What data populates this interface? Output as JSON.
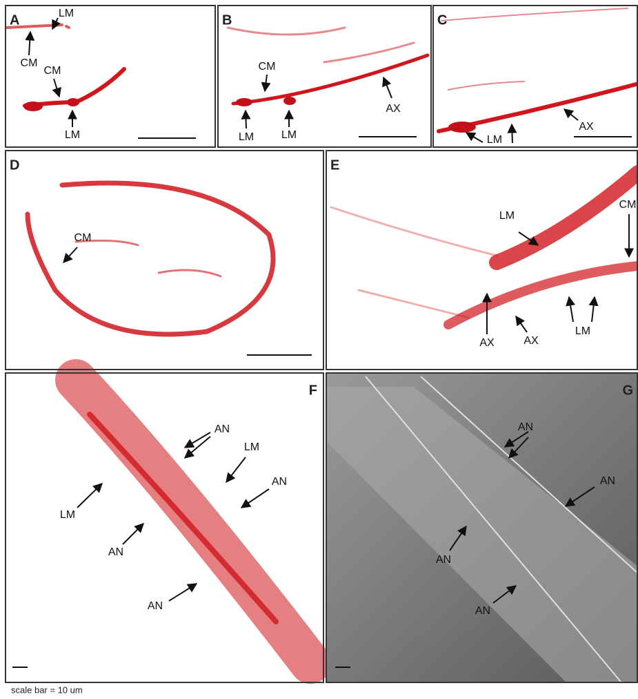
{
  "panels": [
    {
      "letter": "A",
      "labels": [
        "LM",
        "CM",
        "CM",
        "LM"
      ]
    },
    {
      "letter": "B",
      "labels": [
        "CM",
        "AX",
        "LM",
        "LM"
      ]
    },
    {
      "letter": "C",
      "labels": [
        "LM",
        "AX"
      ]
    },
    {
      "letter": "D",
      "labels": [
        "CM"
      ]
    },
    {
      "letter": "E",
      "labels": [
        "LM",
        "CM",
        "AX",
        "AX",
        "LM"
      ]
    },
    {
      "letter": "F",
      "labels": [
        "AN",
        "LM",
        "AN",
        "LM",
        "AN",
        "AN"
      ]
    },
    {
      "letter": "G",
      "labels": [
        "AN",
        "AN",
        "AN",
        "AN"
      ]
    }
  ],
  "caption": "scale  bar = 10 um"
}
